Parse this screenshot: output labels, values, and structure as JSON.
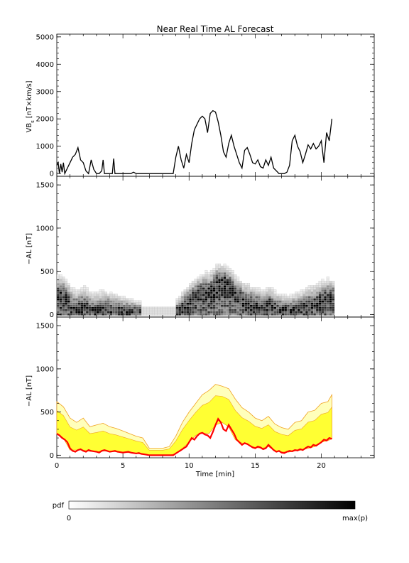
{
  "title": "Near Real Time AL Forecast",
  "xlabel": "Time [min]",
  "colors": {
    "line": "#000000",
    "median": "#ff0000",
    "band_inner": "#ffff33",
    "band_outer": "#ffffbb",
    "band_edge": "#f0a020",
    "pdf_dark": "#000000",
    "pdf_light": "#ffffff"
  },
  "colorbar": {
    "label": "pdf",
    "min_label": "0",
    "max_label": "max(p)"
  },
  "chart_data": [
    {
      "type": "line",
      "panel": "vbs",
      "title": "Near Real Time AL Forecast",
      "ylabel_main": "VB",
      "ylabel_sub": "s",
      "ylabel_unit": "[nT×km/s]",
      "xlim": [
        0,
        24
      ],
      "ylim": [
        -100,
        5100
      ],
      "yticks": [
        0,
        1000,
        2000,
        3000,
        4000,
        5000
      ],
      "series": [
        {
          "x": [
            0.0,
            0.1,
            0.2,
            0.3,
            0.4,
            0.5,
            0.6,
            0.8,
            1.0,
            1.2,
            1.4,
            1.6,
            1.8,
            2.0,
            2.2,
            2.4,
            2.6,
            2.8,
            3.0,
            3.2,
            3.4,
            3.5,
            3.6,
            3.8,
            4.0,
            4.2,
            4.3,
            4.4,
            4.5,
            4.6,
            4.8,
            5.0,
            5.2,
            5.4,
            5.6,
            5.8,
            6.0,
            6.2,
            6.5,
            7.0,
            7.5,
            8.0,
            8.5,
            8.8,
            9.0,
            9.2,
            9.4,
            9.6,
            9.8,
            10.0,
            10.2,
            10.4,
            10.6,
            10.8,
            11.0,
            11.2,
            11.4,
            11.6,
            11.8,
            12.0,
            12.2,
            12.4,
            12.6,
            12.8,
            13.0,
            13.2,
            13.4,
            13.6,
            13.8,
            14.0,
            14.2,
            14.4,
            14.6,
            14.8,
            15.0,
            15.2,
            15.4,
            15.6,
            15.8,
            16.0,
            16.2,
            16.4,
            16.6,
            16.8,
            17.0,
            17.2,
            17.4,
            17.6,
            17.8,
            18.0,
            18.2,
            18.4,
            18.6,
            18.8,
            19.0,
            19.2,
            19.4,
            19.6,
            19.8,
            20.0,
            20.2,
            20.4,
            20.6,
            20.8
          ],
          "y": [
            300,
            400,
            0,
            350,
            50,
            400,
            0,
            200,
            400,
            600,
            700,
            950,
            500,
            400,
            100,
            0,
            500,
            150,
            0,
            0,
            100,
            500,
            0,
            0,
            0,
            0,
            550,
            0,
            0,
            0,
            0,
            0,
            0,
            0,
            0,
            50,
            0,
            0,
            0,
            0,
            0,
            0,
            0,
            0,
            600,
            1000,
            500,
            200,
            700,
            400,
            1100,
            1600,
            1800,
            2000,
            2100,
            2000,
            1500,
            2200,
            2300,
            2250,
            1900,
            1400,
            800,
            600,
            1100,
            1400,
            1000,
            700,
            400,
            200,
            850,
            950,
            700,
            400,
            350,
            500,
            250,
            200,
            500,
            300,
            600,
            200,
            100,
            0,
            0,
            0,
            50,
            300,
            1200,
            1400,
            1000,
            800,
            400,
            700,
            1050,
            900,
            1100,
            900,
            1000,
            1200,
            400,
            1500,
            1200,
            2000
          ]
        }
      ]
    },
    {
      "type": "heatmap",
      "panel": "al_pdf",
      "ylabel": "−AL [nT]",
      "xlim": [
        0,
        24
      ],
      "ylim": [
        -30,
        1600
      ],
      "yticks": [
        0,
        500,
        1000,
        1500
      ],
      "profile": {
        "x": [
          0,
          0.5,
          1,
          1.5,
          2,
          2.5,
          3,
          3.5,
          4,
          4.5,
          5,
          5.5,
          6,
          6.5,
          7,
          7.5,
          8,
          8.5,
          9,
          9.5,
          10,
          10.5,
          11,
          11.5,
          12,
          12.5,
          13,
          13.5,
          14,
          14.5,
          15,
          15.5,
          16,
          16.5,
          17,
          17.5,
          18,
          18.5,
          19,
          19.5,
          20,
          20.5,
          20.8
        ],
        "median": [
          200,
          180,
          70,
          50,
          70,
          40,
          30,
          60,
          40,
          40,
          30,
          25,
          20,
          10,
          0,
          0,
          0,
          0,
          30,
          80,
          150,
          220,
          250,
          230,
          350,
          380,
          320,
          180,
          150,
          120,
          90,
          70,
          100,
          50,
          40,
          30,
          50,
          60,
          80,
          100,
          150,
          170,
          170
        ],
        "spread": [
          450,
          420,
          300,
          250,
          300,
          220,
          230,
          250,
          220,
          200,
          170,
          150,
          120,
          100,
          80,
          80,
          80,
          80,
          150,
          250,
          330,
          400,
          450,
          480,
          550,
          550,
          500,
          420,
          350,
          320,
          280,
          250,
          300,
          230,
          200,
          180,
          220,
          240,
          300,
          320,
          380,
          400,
          380
        ]
      }
    },
    {
      "type": "area",
      "panel": "al_forecast",
      "ylabel": "−AL [nT]",
      "xlabel": "Time [min]",
      "xlim": [
        0,
        24
      ],
      "ylim": [
        -30,
        1600
      ],
      "xticks": [
        0,
        5,
        10,
        15,
        20
      ],
      "yticks": [
        0,
        500,
        1000,
        1500
      ],
      "series": [
        {
          "name": "median",
          "x": [
            0,
            0.2,
            0.4,
            0.6,
            0.8,
            1,
            1.2,
            1.4,
            1.6,
            1.8,
            2,
            2.2,
            2.4,
            2.6,
            2.8,
            3,
            3.2,
            3.4,
            3.6,
            3.8,
            4,
            4.2,
            4.4,
            4.6,
            4.8,
            5,
            5.2,
            5.4,
            5.6,
            5.8,
            6,
            6.2,
            6.4,
            6.6,
            6.8,
            7,
            7.5,
            8,
            8.5,
            8.8,
            9,
            9.2,
            9.4,
            9.6,
            9.8,
            10,
            10.2,
            10.4,
            10.6,
            10.8,
            11,
            11.2,
            11.4,
            11.6,
            11.8,
            12,
            12.2,
            12.4,
            12.6,
            12.8,
            13,
            13.2,
            13.4,
            13.6,
            13.8,
            14,
            14.2,
            14.4,
            14.6,
            14.8,
            15,
            15.2,
            15.4,
            15.6,
            15.8,
            16,
            16.2,
            16.4,
            16.6,
            16.8,
            17,
            17.2,
            17.4,
            17.6,
            17.8,
            18,
            18.2,
            18.4,
            18.6,
            18.8,
            19,
            19.2,
            19.4,
            19.6,
            19.8,
            20,
            20.2,
            20.4,
            20.6,
            20.8
          ],
          "y": [
            250,
            230,
            200,
            180,
            150,
            80,
            50,
            40,
            60,
            70,
            50,
            40,
            60,
            50,
            45,
            40,
            30,
            50,
            60,
            50,
            40,
            45,
            50,
            40,
            35,
            30,
            35,
            40,
            30,
            25,
            20,
            25,
            15,
            10,
            5,
            0,
            0,
            0,
            0,
            0,
            20,
            40,
            60,
            80,
            100,
            150,
            200,
            180,
            220,
            250,
            260,
            240,
            230,
            200,
            270,
            350,
            420,
            380,
            300,
            280,
            350,
            300,
            250,
            180,
            150,
            120,
            140,
            130,
            110,
            90,
            80,
            100,
            90,
            70,
            80,
            120,
            90,
            60,
            40,
            50,
            30,
            25,
            40,
            50,
            45,
            60,
            55,
            70,
            60,
            80,
            100,
            90,
            120,
            110,
            130,
            150,
            180,
            170,
            200,
            190
          ]
        },
        {
          "name": "upper",
          "x": [
            0,
            0.5,
            1,
            1.5,
            2,
            2.5,
            3,
            3.5,
            4,
            4.5,
            5,
            5.5,
            6,
            6.5,
            7,
            7.5,
            8,
            8.5,
            9,
            9.5,
            10,
            10.5,
            11,
            11.5,
            12,
            12.5,
            13,
            13.5,
            14,
            14.5,
            15,
            15.5,
            16,
            16.5,
            17,
            17.5,
            18,
            18.5,
            19,
            19.5,
            20,
            20.5,
            20.8
          ],
          "y": [
            620,
            560,
            430,
            380,
            430,
            330,
            350,
            370,
            330,
            310,
            280,
            250,
            220,
            200,
            80,
            80,
            80,
            100,
            220,
            380,
            500,
            600,
            700,
            750,
            820,
            800,
            770,
            650,
            550,
            500,
            430,
            400,
            450,
            360,
            320,
            300,
            380,
            400,
            500,
            520,
            600,
            620,
            700
          ]
        },
        {
          "name": "lower",
          "x": [
            0,
            0.5,
            1,
            1.5,
            2,
            2.5,
            3,
            3.5,
            4,
            4.5,
            5,
            5.5,
            6,
            6.5,
            7,
            7.5,
            8,
            8.5,
            9,
            9.5,
            10,
            10.5,
            11,
            11.5,
            12,
            12.5,
            13,
            13.5,
            14,
            14.5,
            15,
            15.5,
            16,
            16.5,
            17,
            17.5,
            18,
            18.5,
            19,
            19.5,
            20,
            20.5,
            20.8
          ],
          "y": [
            250,
            200,
            60,
            60,
            60,
            45,
            40,
            50,
            45,
            40,
            30,
            30,
            20,
            10,
            0,
            0,
            0,
            0,
            20,
            80,
            150,
            230,
            260,
            250,
            350,
            380,
            330,
            180,
            140,
            120,
            90,
            80,
            100,
            50,
            40,
            35,
            50,
            60,
            80,
            100,
            150,
            170,
            190
          ]
        }
      ]
    }
  ]
}
